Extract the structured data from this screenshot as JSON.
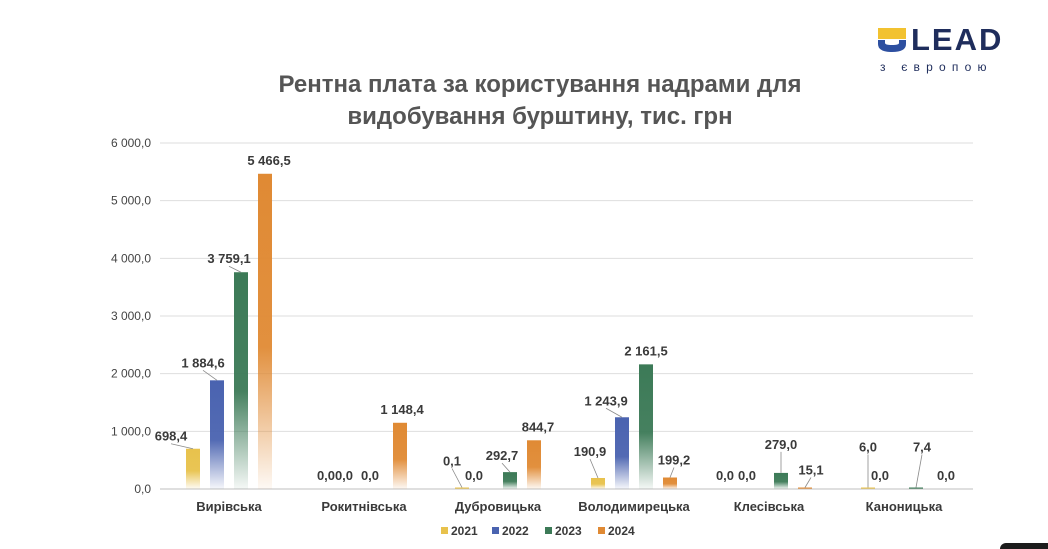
{
  "logo": {
    "word": "LEAD",
    "tagline": "з європою"
  },
  "chart_data": {
    "type": "bar",
    "title_lines": [
      "Рентна плата за користування надрами для",
      "видобування бурштину, тис. грн"
    ],
    "categories": [
      "Вирівська",
      "Рокитнівська",
      "Дубровицька",
      "Володимирецька",
      "Клесівська",
      "Каноницька"
    ],
    "series": [
      {
        "name": "2021",
        "color": "#e8c24c",
        "values": [
          698.4,
          0.0,
          0.1,
          190.9,
          0.0,
          6.0
        ],
        "labels": [
          "698,4",
          "0,0",
          "0,1",
          "190,9",
          "0,0",
          "6,0"
        ]
      },
      {
        "name": "2022",
        "color": "#4a63b0",
        "values": [
          1884.6,
          0.0,
          0.0,
          1243.9,
          0.0,
          0.0
        ],
        "labels": [
          "1 884,6",
          "0,0",
          "0,0",
          "1 243,9",
          "0,0",
          "0,0"
        ]
      },
      {
        "name": "2023",
        "color": "#3c7a57",
        "values": [
          3759.1,
          0.0,
          292.7,
          2161.5,
          279.0,
          7.4
        ],
        "labels": [
          "3 759,1",
          "0,0",
          "292,7",
          "2 161,5",
          "279,0",
          "7,4"
        ]
      },
      {
        "name": "2024",
        "color": "#e08a34",
        "values": [
          5466.5,
          1148.4,
          844.7,
          199.2,
          15.1,
          0.0
        ],
        "labels": [
          "5 466,5",
          "1 148,4",
          "844,7",
          "199,2",
          "15,1",
          "0,0"
        ]
      }
    ],
    "yticks": [
      0,
      1000,
      2000,
      3000,
      4000,
      5000,
      6000
    ],
    "ytick_labels": [
      "0,0",
      "1 000,0",
      "2 000,0",
      "3 000,0",
      "4 000,0",
      "5 000,0",
      "6 000,0"
    ],
    "ylim": [
      0,
      6000
    ],
    "grid": true,
    "legend_position": "bottom"
  }
}
